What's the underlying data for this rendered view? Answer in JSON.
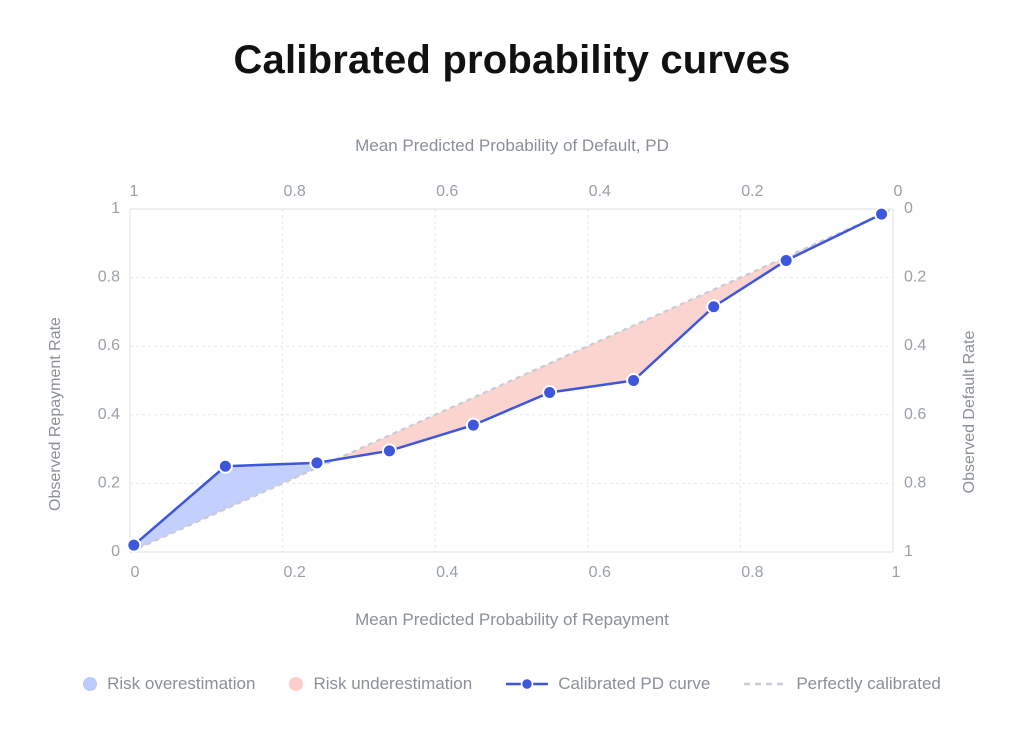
{
  "title": "Calibrated probability curves",
  "chart_data": {
    "type": "line",
    "x_bottom_label": "Mean Predicted Probability of Repayment",
    "x_top_label": "Mean Predicted Probability of Default, PD",
    "y_left_label": "Observed Repayment Rate",
    "y_right_label": "Observed Default Rate",
    "xlim": [
      0,
      1
    ],
    "ylim": [
      0,
      1
    ],
    "x_bottom_ticks": [
      "0",
      "0.2",
      "0.4",
      "0.6",
      "0.8",
      "1"
    ],
    "x_top_ticks": [
      "1",
      "0.8",
      "0.6",
      "0.4",
      "0.2",
      "0"
    ],
    "y_left_ticks": [
      "0",
      "0.2",
      "0.4",
      "0.6",
      "0.8",
      "1"
    ],
    "y_right_ticks": [
      "1",
      "0.8",
      "0.6",
      "0.4",
      "0.2",
      "0"
    ],
    "series": [
      {
        "name": "Calibrated PD curve",
        "x": [
          0.005,
          0.125,
          0.245,
          0.34,
          0.45,
          0.55,
          0.66,
          0.765,
          0.86,
          0.985
        ],
        "y": [
          0.02,
          0.25,
          0.26,
          0.295,
          0.37,
          0.465,
          0.5,
          0.715,
          0.85,
          0.985
        ]
      },
      {
        "name": "Perfectly calibrated",
        "x": [
          0,
          1
        ],
        "y": [
          0,
          1
        ]
      }
    ],
    "legend": [
      {
        "label": "Risk overestimation",
        "kind": "area",
        "color": "#bccafc"
      },
      {
        "label": "Risk underestimation",
        "kind": "area",
        "color": "#fccfca"
      },
      {
        "label": "Calibrated PD curve",
        "kind": "line",
        "color": "#3d56dc"
      },
      {
        "label": "Perfectly calibrated",
        "kind": "dashed",
        "color": "#c8ccd4"
      }
    ],
    "legend_position": "bottom",
    "grid": true
  }
}
